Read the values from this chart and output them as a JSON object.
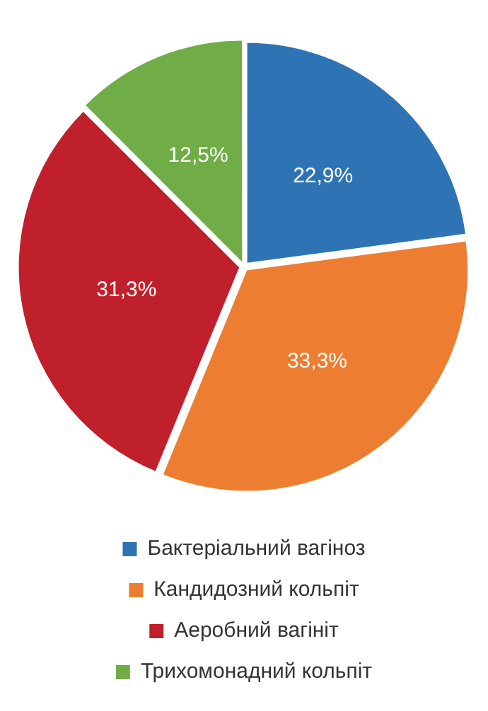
{
  "chart_data": {
    "type": "pie",
    "categories": [
      "Бактеріальний вагіноз",
      "Кандидозний кольпіт",
      "Аеробний вагініт",
      "Трихомонадний кольпіт"
    ],
    "values": [
      22.9,
      33.3,
      31.3,
      12.5
    ],
    "colors": [
      "#2e74b5",
      "#ed7d31",
      "#c0202b",
      "#70ad47"
    ],
    "value_labels": [
      "22,9%",
      "33,3%",
      "31,3%",
      "12,5%"
    ],
    "legend": "bottom"
  }
}
